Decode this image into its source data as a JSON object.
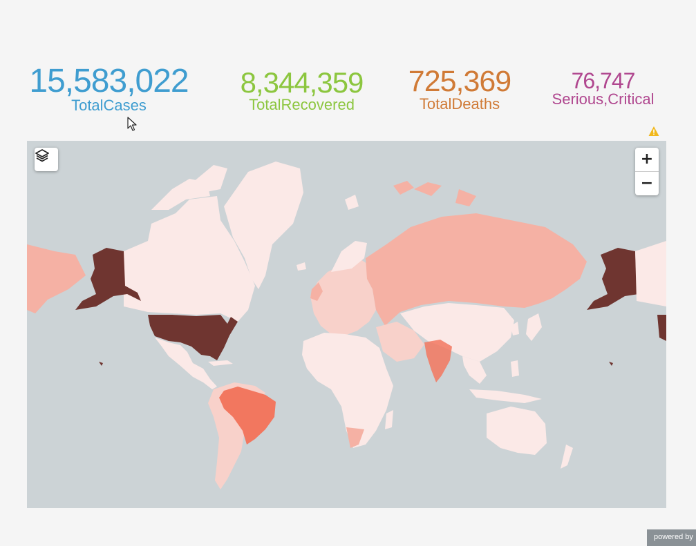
{
  "stats": [
    {
      "id": "total_cases",
      "value": "15,583,022",
      "label": "TotalCases",
      "color": "#3f9dd0"
    },
    {
      "id": "total_recovered",
      "value": "8,344,359",
      "label": "TotalRecovered",
      "color": "#8cc63f"
    },
    {
      "id": "total_deaths",
      "value": "725,369",
      "label": "TotalDeaths",
      "color": "#d07a36"
    },
    {
      "id": "serious_critical",
      "value": "76,747",
      "label": "Serious,Critical",
      "color": "#b0478f"
    }
  ],
  "map": {
    "ocean_color": "#ccd3d6",
    "choropleth_scale": [
      "#fbe9e7",
      "#f8d1ca",
      "#f5b1a4",
      "#f2775f",
      "#6f3530"
    ],
    "controls": {
      "zoom_in": "+",
      "zoom_out": "−",
      "layers_icon": "layers-icon"
    }
  },
  "warning_icon": "warning-icon",
  "warning_color": "#f1b81c",
  "footer": {
    "powered_by": "powered by"
  }
}
